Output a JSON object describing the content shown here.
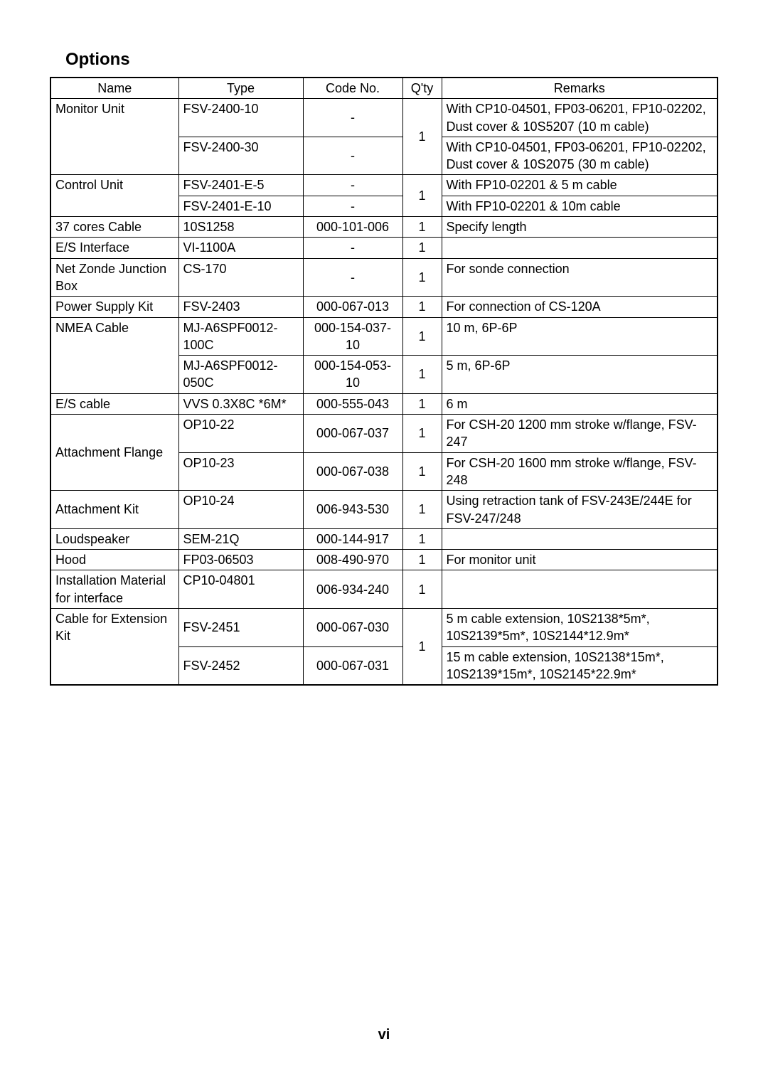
{
  "page": {
    "title": "Options",
    "page_number": "vi"
  },
  "table": {
    "headers": [
      "Name",
      "Type",
      "Code No.",
      "Q'ty",
      "Remarks"
    ],
    "rows": [
      {
        "name": "Monitor Unit",
        "type": "FSV-2400-10",
        "code": "-",
        "qty": "1",
        "remarks": "With CP10-04501, FP03-06201, FP10-02202, Dust cover & 10S5207 (10 m cable)",
        "name_rows": 2,
        "qty_rows": 2
      },
      {
        "type": "FSV-2400-30",
        "code": "-",
        "remarks": "With CP10-04501, FP03-06201, FP10-02202, Dust cover & 10S2075 (30 m cable)"
      },
      {
        "name": "Control Unit",
        "type": "FSV-2401-E-5",
        "code": "-",
        "qty": "1",
        "remarks": "With FP10-02201 & 5 m cable",
        "name_rows": 2,
        "qty_rows": 2
      },
      {
        "type": "FSV-2401-E-10",
        "code": "-",
        "remarks": "With FP10-02201 & 10m cable"
      },
      {
        "name": "37 cores Cable",
        "type": "10S1258",
        "code": "000-101-006",
        "qty": "1",
        "remarks": "Specify length"
      },
      {
        "name": "E/S Interface",
        "type": "VI-1100A",
        "code": "-",
        "qty": "1",
        "remarks": ""
      },
      {
        "name": "Net Zonde Junction Box",
        "type": "CS-170",
        "code": "-",
        "qty": "1",
        "remarks": "For sonde connection"
      },
      {
        "name": "Power Supply Kit",
        "type": "FSV-2403",
        "code": "000-067-013",
        "qty": "1",
        "remarks": "For connection of CS-120A",
        "name_vmid": true
      },
      {
        "name": "NMEA Cable",
        "type": "MJ-A6SPF0012-100C",
        "code": "000-154-037-10",
        "qty": "1",
        "remarks": "10 m, 6P-6P",
        "name_rows": 2
      },
      {
        "type": "MJ-A6SPF0012-050C",
        "code": "000-154-053-10",
        "qty": "1",
        "remarks": "5 m, 6P-6P"
      },
      {
        "name": "E/S cable",
        "type": "VVS 0.3X8C *6M*",
        "code": "000-555-043",
        "qty": "1",
        "remarks": "6 m"
      },
      {
        "name": "Attachment Flange",
        "type": "OP10-22",
        "code": "000-067-037",
        "qty": "1",
        "remarks": "For CSH-20 1200 mm stroke w/flange, FSV-247",
        "name_rows": 2,
        "name_vmid": true
      },
      {
        "type": "OP10-23",
        "code": "000-067-038",
        "qty": "1",
        "remarks": "For CSH-20 1600 mm stroke w/flange, FSV-248"
      },
      {
        "name": "Attachment Kit",
        "type": "OP10-24",
        "code": "006-943-530",
        "qty": "1",
        "remarks": "Using retraction tank of FSV-243E/244E for FSV-247/248",
        "name_vmid": true
      },
      {
        "name": "Loudspeaker",
        "type": "SEM-21Q",
        "code": "000-144-917",
        "qty": "1",
        "remarks": ""
      },
      {
        "name": "Hood",
        "type": "FP03-06503",
        "code": "008-490-970",
        "qty": "1",
        "remarks": "For monitor unit"
      },
      {
        "name": "Installation Material for interface",
        "type": "CP10-04801",
        "code": "006-934-240",
        "qty": "1",
        "remarks": ""
      },
      {
        "name": "Cable for Extension Kit",
        "type": "FSV-2451",
        "code": "000-067-030",
        "qty": "1",
        "remarks": "5 m cable extension, 10S2138*5m*, 10S2139*5m*, 10S2144*12.9m*",
        "name_rows": 2,
        "qty_rows": 2,
        "type_vmid": true
      },
      {
        "type": "FSV-2452",
        "code": "000-067-031",
        "remarks": "15 m cable extension, 10S2138*15m*, 10S2139*15m*, 10S2145*22.9m*",
        "type_vmid": true
      }
    ]
  }
}
